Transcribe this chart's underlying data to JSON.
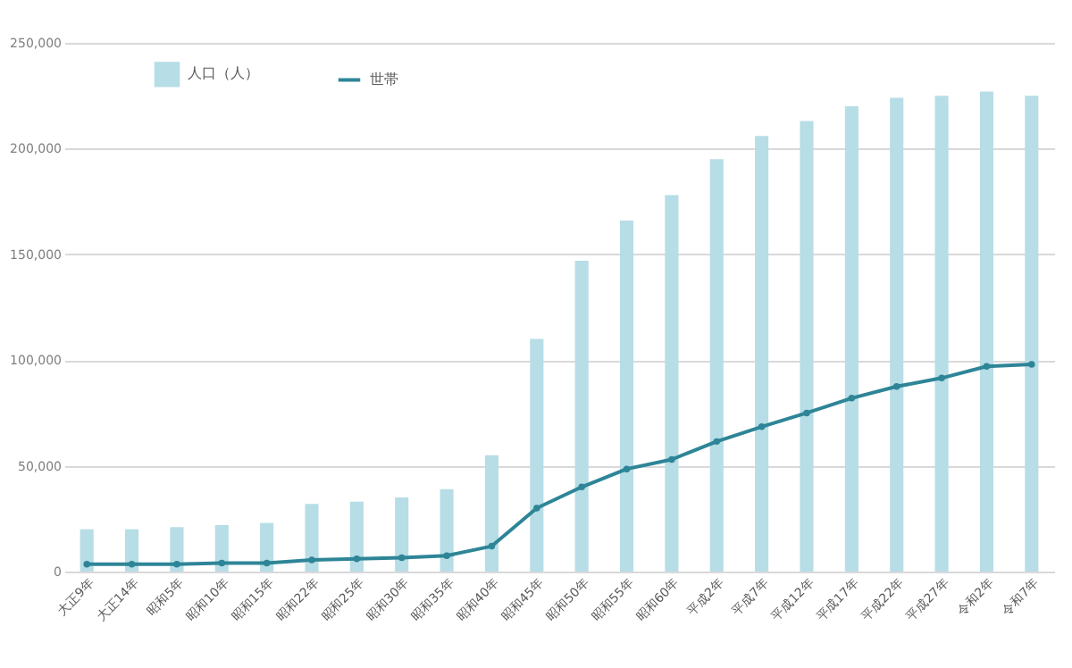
{
  "chart_data": {
    "type": "bar",
    "categories": [
      "大正9年",
      "大正14年",
      "昭和5年",
      "昭和10年",
      "昭和15年",
      "昭和22年",
      "昭和25年",
      "昭和30年",
      "昭和35年",
      "昭和40年",
      "昭和45年",
      "昭和50年",
      "昭和55年",
      "昭和60年",
      "平成2年",
      "平成7年",
      "平成12年",
      "平成17年",
      "平成22年",
      "平成27年",
      "令和2年",
      "令和7年"
    ],
    "series": [
      {
        "name": "人口（人）",
        "color": "#b7dde6",
        "values": [
          20000,
          20000,
          21000,
          22000,
          23000,
          32000,
          33000,
          35000,
          39000,
          55000,
          110000,
          147000,
          166000,
          178000,
          195000,
          206000,
          213000,
          220000,
          224000,
          225000,
          227000,
          225000
        ]
      },
      {
        "name": "世帯",
        "type": "line",
        "color": "#2e8597",
        "marker": "circle",
        "values": [
          3500,
          3500,
          3500,
          4000,
          4000,
          5500,
          6000,
          6500,
          7500,
          12000,
          30000,
          40000,
          48500,
          53000,
          61500,
          68500,
          75000,
          82000,
          87500,
          91500,
          97000,
          98000
        ]
      }
    ],
    "ylim": [
      0,
      250000
    ],
    "yticks": [
      0,
      {
        "value": 50000,
        "label": "50,000"
      },
      {
        "value": 100000,
        "label": "100,000"
      },
      {
        "value": 150000,
        "label": "150,000"
      },
      {
        "value": 200000,
        "label": "200,000"
      },
      {
        "value": 250000,
        "label": "250,000"
      }
    ],
    "grid": "y",
    "legend": "top left"
  }
}
